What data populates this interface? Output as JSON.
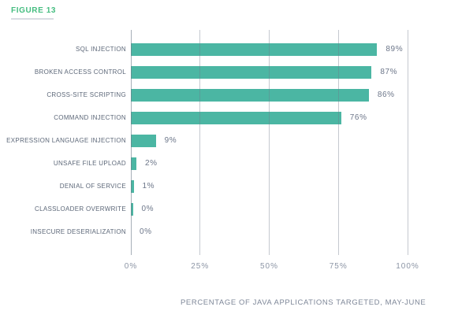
{
  "figure_label": "FIGURE 13",
  "caption": "PERCENTAGE OF JAVA APPLICATIONS TARGETED, MAY-JUNE",
  "colors": {
    "bar": "#4bb6a3",
    "figure_label_green": "#45bd80",
    "grid": "#6d7989",
    "category_text": "#5d6879",
    "value_text": "#6c7689",
    "tick_text": "#8c95a5",
    "caption_text": "#7e8798"
  },
  "chart_data": {
    "type": "bar",
    "orientation": "horizontal",
    "title": "FIGURE 13",
    "xlabel": "PERCENTAGE OF JAVA APPLICATIONS TARGETED, MAY-JUNE",
    "ylabel": "",
    "xlim": [
      0,
      100
    ],
    "x_ticks": [
      "0%",
      "25%",
      "50%",
      "75%",
      "100%"
    ],
    "x_tick_values": [
      0,
      25,
      50,
      75,
      100
    ],
    "grid": true,
    "legend": false,
    "categories": [
      "SQL INJECTION",
      "BROKEN ACCESS CONTROL",
      "CROSS-SITE SCRIPTING",
      "COMMAND INJECTION",
      "EXPRESSION LANGUAGE INJECTION",
      "UNSAFE FILE UPLOAD",
      "DENIAL OF SERVICE",
      "CLASSLOADER OVERWRITE",
      "INSECURE DESERIALIZATION"
    ],
    "values": [
      89,
      87,
      86,
      76,
      9,
      2,
      1,
      0,
      0
    ],
    "value_labels": [
      "89%",
      "87%",
      "86%",
      "76%",
      "9%",
      "2%",
      "1%",
      "0%",
      "0%"
    ],
    "zero_value_trace_bars": [
      "CLASSLOADER OVERWRITE"
    ]
  }
}
